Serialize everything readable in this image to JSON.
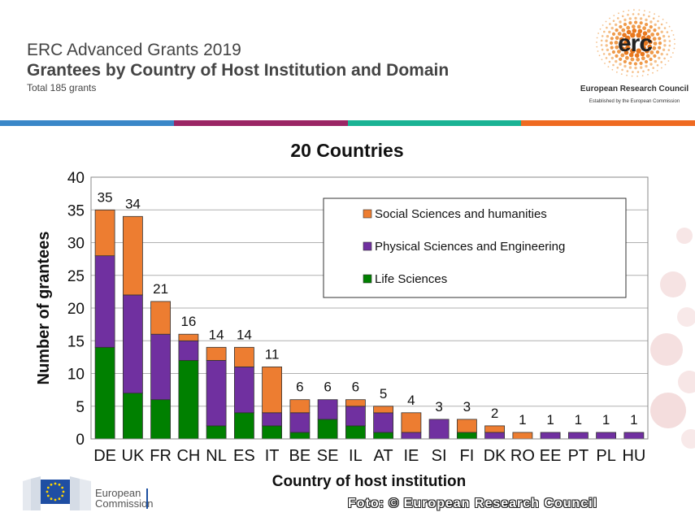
{
  "header": {
    "line1": "ERC Advanced Grants 2019",
    "line2": "Grantees by Country of Host Institution and Domain",
    "line3": "Total 185 grants"
  },
  "logo": {
    "mark": "erc",
    "name": "European Research Council",
    "tagline": "Established by the European Commission"
  },
  "colors": {
    "stripe": [
      "#3a87c8",
      "#9b2665",
      "#1ab394",
      "#ef6a21"
    ],
    "social": "#ed7d31",
    "physical": "#7030a0",
    "life": "#008000"
  },
  "footer": {
    "ec_line1": "European",
    "ec_line2": "Commission",
    "credit": "Foto: © European Research Council"
  },
  "chart_data": {
    "type": "bar",
    "stacked": true,
    "title": "20 Countries",
    "xlabel": "Country of host institution",
    "ylabel": "Number of grantees",
    "ylim": [
      0,
      40
    ],
    "yticks": [
      0,
      5,
      10,
      15,
      20,
      25,
      30,
      35,
      40
    ],
    "categories": [
      "DE",
      "UK",
      "FR",
      "CH",
      "NL",
      "ES",
      "IT",
      "BE",
      "SE",
      "IL",
      "AT",
      "IE",
      "SI",
      "FI",
      "DK",
      "RO",
      "EE",
      "PT",
      "PL",
      "HU"
    ],
    "series": [
      {
        "name": "Life Sciences",
        "color": "#008000",
        "values": [
          14,
          7,
          6,
          12,
          2,
          4,
          2,
          1,
          3,
          2,
          1,
          0,
          0,
          1,
          0,
          0,
          0,
          0,
          0,
          0
        ]
      },
      {
        "name": "Physical Sciences and Engineering",
        "color": "#7030a0",
        "values": [
          14,
          15,
          10,
          3,
          10,
          7,
          2,
          3,
          3,
          3,
          3,
          1,
          3,
          0,
          1,
          0,
          1,
          1,
          1,
          1
        ]
      },
      {
        "name": "Social Sciences and humanities",
        "color": "#ed7d31",
        "values": [
          7,
          12,
          5,
          1,
          2,
          3,
          7,
          2,
          0,
          1,
          1,
          3,
          0,
          2,
          1,
          1,
          0,
          0,
          0,
          0
        ]
      }
    ],
    "totals": [
      35,
      34,
      21,
      16,
      14,
      14,
      11,
      6,
      6,
      6,
      5,
      4,
      3,
      3,
      2,
      1,
      1,
      1,
      1,
      1
    ],
    "legend": [
      "Social Sciences and humanities",
      "Physical Sciences and Engineering",
      "Life Sciences"
    ],
    "legend_position": "top-right",
    "grid": true
  }
}
